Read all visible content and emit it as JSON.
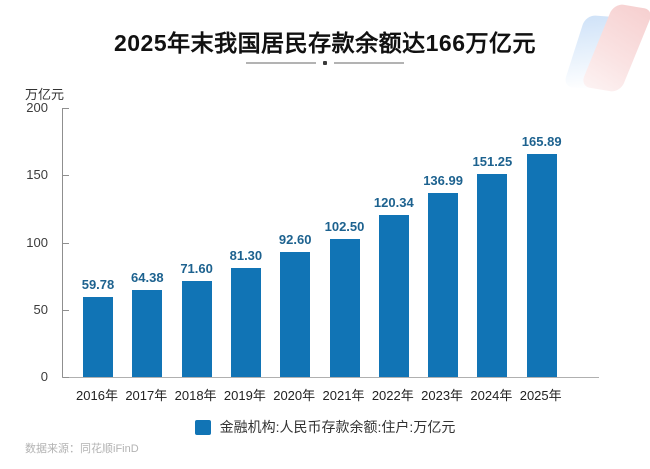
{
  "page": {
    "source": "数据来源：同花顺iFinD"
  },
  "colors": {
    "bar": "#1174b5",
    "value_label": "#1d628f",
    "axis": "#8f8f8f",
    "title": "#111111",
    "source_text": "#b3b3b3"
  },
  "chart_data": {
    "type": "bar",
    "title": "2025年末我国居民存款余额达166万亿元",
    "categories": [
      "2016年",
      "2017年",
      "2018年",
      "2019年",
      "2020年",
      "2021年",
      "2022年",
      "2023年",
      "2024年",
      "2025年"
    ],
    "values": [
      59.78,
      64.38,
      71.6,
      81.3,
      92.6,
      102.5,
      120.34,
      136.99,
      151.25,
      165.89
    ],
    "value_labels": [
      "59.78",
      "64.38",
      "71.60",
      "81.30",
      "92.60",
      "102.50",
      "120.34",
      "136.99",
      "151.25",
      "165.89"
    ],
    "xlabel": "",
    "ylabel": "万亿元",
    "ylim": [
      0,
      200
    ],
    "yticks": [
      0,
      50,
      100,
      150,
      200
    ],
    "grid": false,
    "legend": "金融机构:人民币存款余额:住户:万亿元",
    "legend_position": "bottom"
  }
}
